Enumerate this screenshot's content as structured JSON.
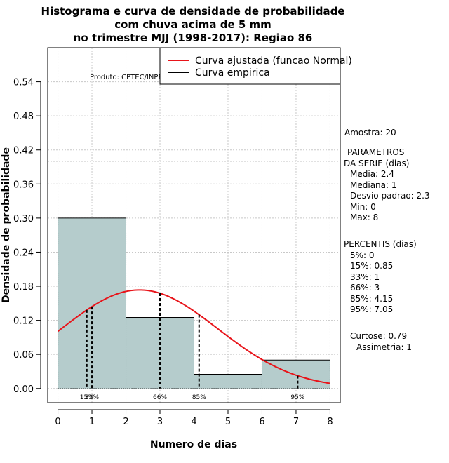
{
  "chart_data": {
    "type": "bar",
    "title": [
      "Histograma e curva de densidade de probabilidade",
      "com chuva acima de 5 mm",
      "no trimestre MJJ (1998-2017): Regiao 86"
    ],
    "xlabel": "Numero de dias",
    "ylabel": "Densidade de probabilidade",
    "xlim": [
      -0.3,
      8.3
    ],
    "ylim": [
      -0.025,
      0.6
    ],
    "xticks": [
      0,
      1,
      2,
      3,
      4,
      5,
      6,
      7,
      8
    ],
    "yticks": [
      "0.00",
      "0.06",
      "0.12",
      "0.18",
      "0.24",
      "0.30",
      "0.36",
      "0.42",
      "0.48",
      "0.54"
    ],
    "grid": true,
    "bins": [
      {
        "from": 0,
        "to": 2,
        "density": 0.3
      },
      {
        "from": 2,
        "to": 4,
        "density": 0.125
      },
      {
        "from": 4,
        "to": 6,
        "density": 0.025
      },
      {
        "from": 6,
        "to": 8,
        "density": 0.05
      }
    ],
    "reference_line": 0.4,
    "normal_fit": {
      "mean": 2.4,
      "sd": 2.3,
      "range": [
        0,
        8
      ]
    },
    "percentile_lines": [
      {
        "label": "15%",
        "x": 0.85
      },
      {
        "label": "33%",
        "x": 1
      },
      {
        "label": "66%",
        "x": 3
      },
      {
        "label": "85%",
        "x": 4.15
      },
      {
        "label": "95%",
        "x": 7.05
      }
    ],
    "legend": {
      "position": "top-right",
      "entries": [
        {
          "label": "Curva ajustada (funcao Normal)",
          "color": "#e8141a"
        },
        {
          "label": "Curva empirica",
          "color": "#000000"
        }
      ]
    },
    "annotation": "Produto: CPTEC/INPE",
    "colors": {
      "bar_fill": "#b5cccc",
      "curve": "#e8141a",
      "grid": "#c8c8c8"
    }
  },
  "stats": {
    "amostra": "Amostra: 20",
    "param_title": [
      "PARAMETROS",
      "DA SERIE (dias)"
    ],
    "params": [
      "Media: 2.4",
      "Mediana: 1",
      "Desvio padrao: 2.3",
      "Min: 0",
      "Max: 8"
    ],
    "perc_title": "PERCENTIS (dias)",
    "percentis": [
      "5%: 0",
      "15%: 0.85",
      "33%: 1",
      "66%: 3",
      "85%: 4.15",
      "95%: 7.05"
    ],
    "curtose": "Curtose: 0.79",
    "assimetria": "Assimetria: 1"
  }
}
